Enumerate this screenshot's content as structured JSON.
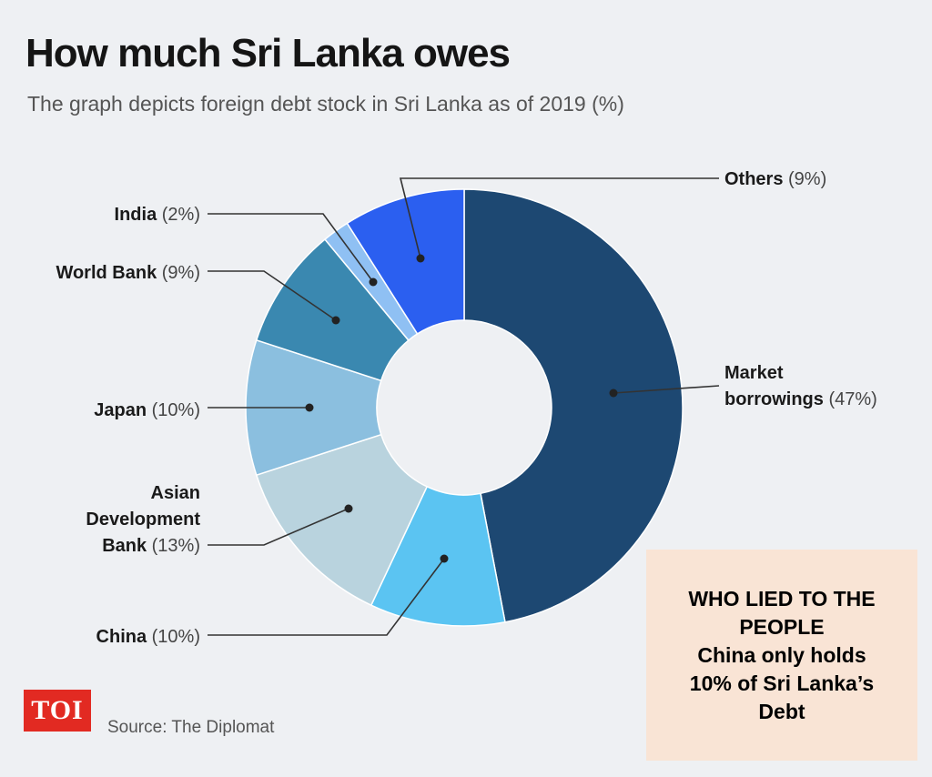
{
  "header": {
    "title": "How much Sri Lanka owes",
    "subtitle": "The graph depicts foreign debt stock in Sri Lanka as of 2019 (%)"
  },
  "chart_data": {
    "type": "pie",
    "variant": "donut",
    "title": "How much Sri Lanka owes",
    "subtitle": "The graph depicts foreign debt stock in Sri Lanka as of 2019 (%)",
    "unit": "%",
    "slices": [
      {
        "name": "Market borrowings",
        "label_lines": [
          "Market",
          "borrowings (47%)"
        ],
        "value": 47,
        "color": "#1d4872"
      },
      {
        "name": "China",
        "label_lines": [
          "China (10%)"
        ],
        "value": 10,
        "color": "#5bc4f2"
      },
      {
        "name": "Asian Development Bank",
        "label_lines": [
          "Asian",
          "Development",
          "Bank (13%)"
        ],
        "value": 13,
        "color": "#b9d3de"
      },
      {
        "name": "Japan",
        "label_lines": [
          "Japan (10%)"
        ],
        "value": 10,
        "color": "#8bbfdf"
      },
      {
        "name": "World Bank",
        "label_lines": [
          "World Bank (9%)"
        ],
        "value": 9,
        "color": "#3a88b0"
      },
      {
        "name": "India",
        "label_lines": [
          "India (2%)"
        ],
        "value": 2,
        "color": "#8fc0f3"
      },
      {
        "name": "Others",
        "label_lines": [
          "Others (9%)"
        ],
        "value": 9,
        "color": "#2b5ff0"
      }
    ]
  },
  "footer": {
    "logo_text": "TOI",
    "source": "Source: The Diplomat"
  },
  "callout": {
    "text": "WHO LIED TO THE\nPEOPLE\nChina only holds\n10% of Sri Lanka’s\nDebt"
  }
}
